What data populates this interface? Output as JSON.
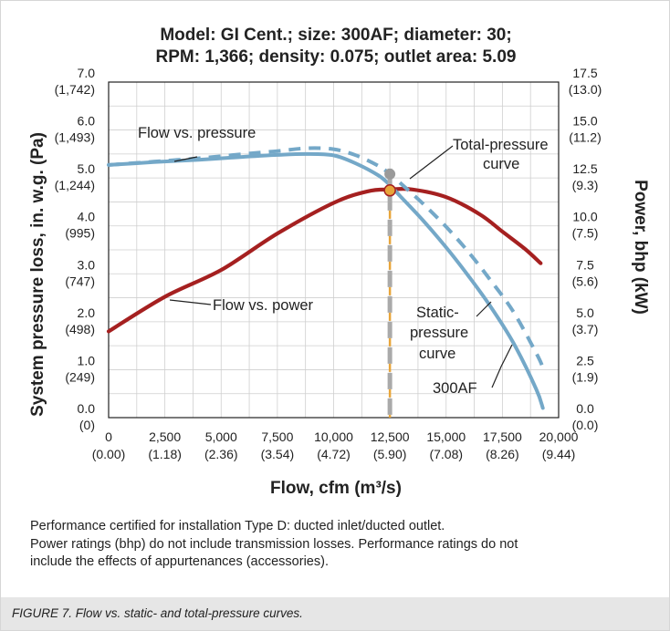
{
  "chart_data": {
    "type": "line",
    "title_lines": [
      "Model: GI Cent.; size: 300AF; diameter: 30;",
      "RPM: 1,366; density: 0.075; outlet area: 5.09"
    ],
    "xlabel": "Flow, cfm (m³/s)",
    "ylabel_left": "System pressure loss, in. w.g. (Pa)",
    "ylabel_right": "Power, bhp (kW)",
    "xlim": [
      0,
      20000
    ],
    "ylim_left": [
      0,
      7
    ],
    "ylim_right": [
      0,
      17.5
    ],
    "grid": true,
    "x_ticks": [
      {
        "v": 0,
        "top": "0",
        "bottom": "(0.00)"
      },
      {
        "v": 2500,
        "top": "2,500",
        "bottom": "(1.18)"
      },
      {
        "v": 5000,
        "top": "5,000",
        "bottom": "(2.36)"
      },
      {
        "v": 7500,
        "top": "7,500",
        "bottom": "(3.54)"
      },
      {
        "v": 10000,
        "top": "10,000",
        "bottom": "(4.72)"
      },
      {
        "v": 12500,
        "top": "12,500",
        "bottom": "(5.90)"
      },
      {
        "v": 15000,
        "top": "15,000",
        "bottom": "(7.08)"
      },
      {
        "v": 17500,
        "top": "17,500",
        "bottom": "(8.26)"
      },
      {
        "v": 20000,
        "top": "20,000",
        "bottom": "(9.44)"
      }
    ],
    "y_ticks_left": [
      {
        "v": 0,
        "top": "0.0",
        "bottom": "(0)"
      },
      {
        "v": 1,
        "top": "1.0",
        "bottom": "(249)"
      },
      {
        "v": 2,
        "top": "2.0",
        "bottom": "(498)"
      },
      {
        "v": 3,
        "top": "3.0",
        "bottom": "(747)"
      },
      {
        "v": 4,
        "top": "4.0",
        "bottom": "(995)"
      },
      {
        "v": 5,
        "top": "5.0",
        "bottom": "(1,244)"
      },
      {
        "v": 6,
        "top": "6.0",
        "bottom": "(1,493)"
      },
      {
        "v": 7,
        "top": "7.0",
        "bottom": "(1,742)"
      }
    ],
    "y_ticks_right": [
      {
        "v": 0,
        "top": "0.0",
        "bottom": "(0.0)"
      },
      {
        "v": 2.5,
        "top": "2.5",
        "bottom": "(1.9)"
      },
      {
        "v": 5,
        "top": "5.0",
        "bottom": "(3.7)"
      },
      {
        "v": 7.5,
        "top": "7.5",
        "bottom": "(5.6)"
      },
      {
        "v": 10,
        "top": "10.0",
        "bottom": "(7.5)"
      },
      {
        "v": 12.5,
        "top": "12.5",
        "bottom": "(9.3)"
      },
      {
        "v": 15,
        "top": "15.0",
        "bottom": "(11.2)"
      },
      {
        "v": 17.5,
        "top": "17.5",
        "bottom": "(13.0)"
      }
    ],
    "series": [
      {
        "name": "Static-pressure curve",
        "axis": "left",
        "color": "#74a8c8",
        "dash": false,
        "x": [
          0,
          2000,
          4000,
          6000,
          7500,
          8800,
          10000,
          11000,
          12000,
          12500,
          13000,
          14000,
          15000,
          16000,
          17000,
          18000,
          19000,
          19300
        ],
        "y": [
          5.27,
          5.33,
          5.38,
          5.44,
          5.48,
          5.5,
          5.47,
          5.3,
          5.05,
          4.85,
          4.6,
          4.1,
          3.55,
          2.95,
          2.3,
          1.55,
          0.6,
          0.2
        ]
      },
      {
        "name": "Total-pressure curve",
        "axis": "left",
        "color": "#74a8c8",
        "dash": true,
        "x": [
          0,
          2000,
          4000,
          6000,
          7500,
          8800,
          10000,
          11000,
          12000,
          12500,
          13000,
          14000,
          15000,
          16000,
          17000,
          18000,
          19000,
          19300
        ],
        "y": [
          5.27,
          5.34,
          5.41,
          5.5,
          5.56,
          5.62,
          5.6,
          5.47,
          5.25,
          5.08,
          4.88,
          4.45,
          3.98,
          3.45,
          2.85,
          2.2,
          1.35,
          1.05
        ]
      },
      {
        "name": "Flow vs. power",
        "axis": "right",
        "color": "#a52020",
        "dash": false,
        "x": [
          0,
          2500,
          5000,
          7500,
          10000,
          11500,
          12500,
          13500,
          15000,
          16500,
          17500,
          18500,
          19200
        ],
        "y": [
          4.5,
          6.3,
          7.7,
          9.6,
          11.2,
          11.8,
          11.9,
          11.9,
          11.5,
          10.6,
          9.7,
          8.8,
          8.05
        ]
      }
    ],
    "operating_point": {
      "x": 12500,
      "y_static": 4.85,
      "y_total": 5.08,
      "y_power": 11.85
    },
    "annotations": {
      "flow_vs_pressure": "Flow vs. pressure",
      "total_pressure_1": "Total-pressure",
      "total_pressure_2": "curve",
      "flow_vs_power": "Flow vs. power",
      "static_1": "Static-",
      "static_2": "pressure",
      "static_3": "curve",
      "model": "300AF"
    }
  },
  "notes": [
    "Performance certified for installation Type D: ducted inlet/ducted outlet.",
    "Power ratings (bhp) do not include transmission losses. Performance ratings do not",
    "include the effects of appurtenances (accessories)."
  ],
  "caption": "FIGURE 7. Flow vs. static- and total-pressure curves.",
  "colors": {
    "pressure": "#74a8c8",
    "power": "#a52020",
    "operating": "#e8a53a",
    "guide": "#aaaaaa",
    "grid": "#cfcfcf"
  }
}
